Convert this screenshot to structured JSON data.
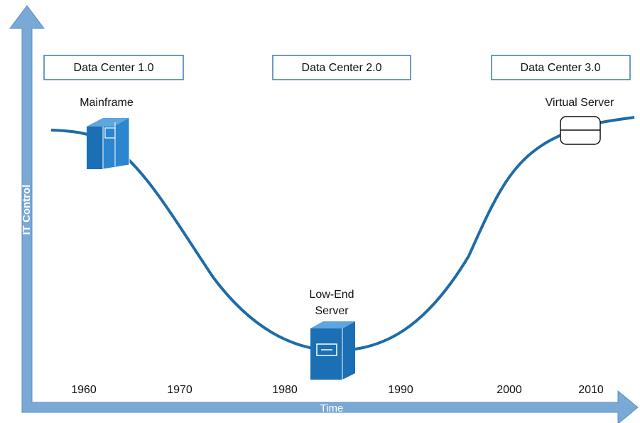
{
  "stages": [
    "Data Center 1.0",
    "Data Center 2.0",
    "Data Center 3.0"
  ],
  "nodes": [
    {
      "lines": [
        "Mainframe"
      ]
    },
    {
      "lines": [
        "Low-End",
        "Server"
      ]
    },
    {
      "lines": [
        "Virtual Server"
      ]
    }
  ],
  "axes": {
    "y": "IT Control",
    "x": "Time"
  },
  "timeline": [
    "1960",
    "1970",
    "1980",
    "1990",
    "2000",
    "2010"
  ]
}
